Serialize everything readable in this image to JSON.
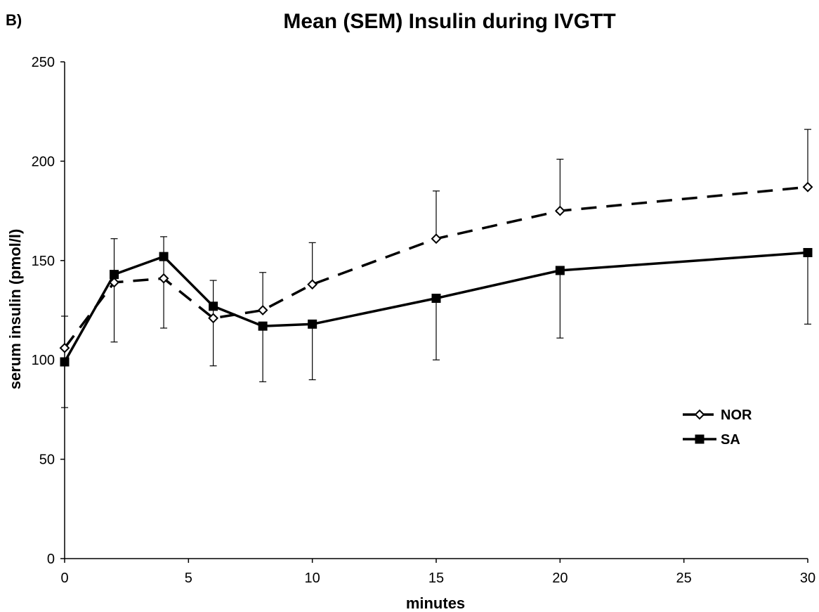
{
  "chart_data": {
    "type": "line",
    "panel_label": "B)",
    "title": "Mean (SEM) Insulin during IVGTT",
    "xlabel": "minutes",
    "ylabel": "serum insulin (pmol/l)",
    "xlim": [
      0,
      30
    ],
    "ylim": [
      0,
      250
    ],
    "xticks": [
      0,
      5,
      10,
      15,
      20,
      25,
      30
    ],
    "yticks": [
      0,
      50,
      100,
      150,
      200,
      250
    ],
    "grid": false,
    "legend_position": "right-middle",
    "series": [
      {
        "name": "NOR",
        "line_style": "dashed",
        "marker": "open-diamond",
        "color": "#000000",
        "x": [
          0,
          2,
          4,
          6,
          8,
          10,
          15,
          20,
          30
        ],
        "y": [
          106,
          139,
          141,
          121,
          125,
          138,
          161,
          175,
          187
        ],
        "error_upper": [
          122,
          161,
          162,
          140,
          144,
          159,
          185,
          201,
          216
        ],
        "error_lower": [
          null,
          null,
          116,
          97,
          null,
          null,
          null,
          null,
          null
        ]
      },
      {
        "name": "SA",
        "line_style": "solid",
        "marker": "filled-square",
        "color": "#000000",
        "x": [
          0,
          2,
          4,
          6,
          8,
          10,
          15,
          20,
          30
        ],
        "y": [
          99,
          143,
          152,
          127,
          117,
          118,
          131,
          145,
          154
        ],
        "error_upper": [
          null,
          null,
          null,
          null,
          null,
          null,
          null,
          null,
          null
        ],
        "error_lower": [
          76,
          109,
          null,
          null,
          89,
          90,
          100,
          111,
          118
        ]
      }
    ]
  }
}
